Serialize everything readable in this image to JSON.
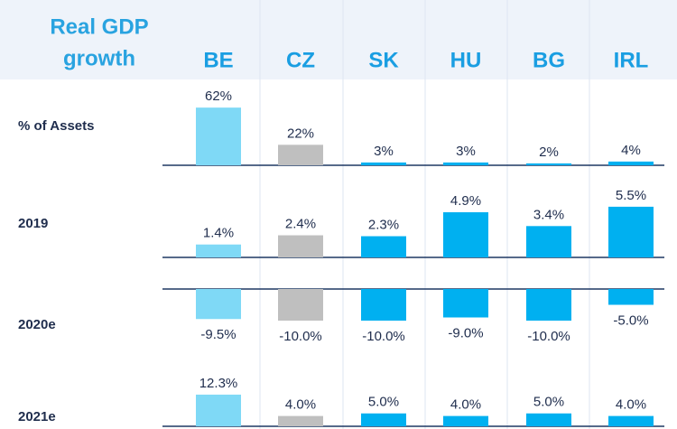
{
  "header": {
    "title_lines": [
      "Real GDP",
      "growth"
    ],
    "columns": [
      "BE",
      "CZ",
      "SK",
      "HU",
      "BG",
      "IRL"
    ],
    "colors": [
      "#7fd9f6",
      "#bfbfbf",
      "#00b0f0",
      "#00b0f0",
      "#00b0f0",
      "#00b0f0"
    ]
  },
  "chart_data": [
    {
      "type": "bar",
      "label": "% of Assets",
      "values": [
        62,
        22,
        3,
        3,
        2,
        4
      ],
      "value_labels": [
        "62%",
        "22%",
        "3%",
        "3%",
        "2%",
        "4%"
      ]
    },
    {
      "type": "bar",
      "label": "2019",
      "values": [
        1.4,
        2.4,
        2.3,
        4.9,
        3.4,
        5.5
      ],
      "value_labels": [
        "1.4%",
        "2.4%",
        "2.3%",
        "4.9%",
        "3.4%",
        "5.5%"
      ]
    },
    {
      "type": "bar",
      "label": "2020e",
      "values": [
        -9.5,
        -10.0,
        -10.0,
        -9.0,
        -10.0,
        -5.0
      ],
      "value_labels": [
        "-9.5%",
        "-10.0%",
        "-10.0%",
        "-9.0%",
        "-10.0%",
        "-5.0%"
      ]
    },
    {
      "type": "bar",
      "label": "2021e",
      "values": [
        12.3,
        4.0,
        5.0,
        4.0,
        5.0,
        4.0
      ],
      "value_labels": [
        "12.3%",
        "4.0%",
        "5.0%",
        "4.0%",
        "5.0%",
        "4.0%"
      ]
    }
  ]
}
